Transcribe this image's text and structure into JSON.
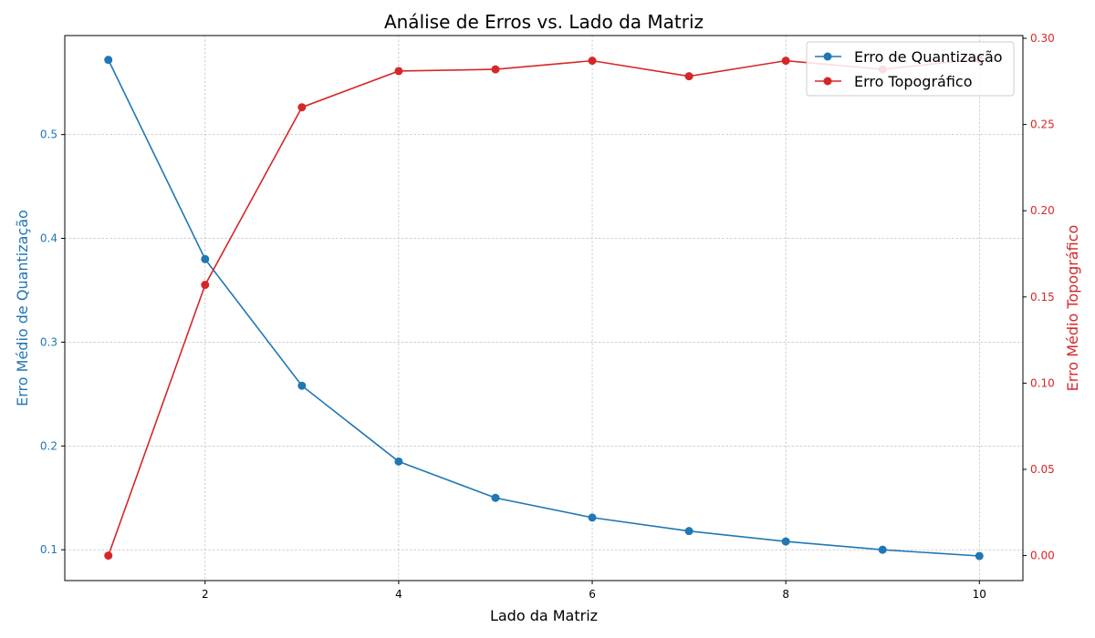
{
  "chart_data": {
    "type": "line",
    "title": "Análise de Erros vs. Lado da Matriz",
    "xlabel": "Lado da Matriz",
    "ylabel_left": "Erro Médio de Quantização",
    "ylabel_right": "Erro Médio Topográfico",
    "x": [
      1,
      2,
      3,
      4,
      5,
      6,
      7,
      8,
      9,
      10
    ],
    "xlim": [
      0.55,
      10.45
    ],
    "x_ticks": [
      2,
      4,
      6,
      8,
      10
    ],
    "ylim_left": [
      0.0703,
      0.5954
    ],
    "y_ticks_left": [
      0.1,
      0.2,
      0.3,
      0.4,
      0.5
    ],
    "ylim_right": [
      -0.0145,
      0.3016
    ],
    "y_ticks_right": [
      0.0,
      0.05,
      0.1,
      0.15,
      0.2,
      0.25,
      0.3
    ],
    "grid": true,
    "legend_position": "top-right",
    "series": [
      {
        "name": "Erro de Quantização",
        "axis": "left",
        "color": "#1f77b4",
        "values": [
          0.572,
          0.38,
          0.258,
          0.185,
          0.15,
          0.131,
          0.118,
          0.108,
          0.1,
          0.094
        ]
      },
      {
        "name": "Erro Topográfico",
        "axis": "right",
        "color": "#d62728",
        "values": [
          0.0,
          0.157,
          0.26,
          0.281,
          0.282,
          0.287,
          0.278,
          0.287,
          0.282,
          0.288
        ]
      }
    ]
  }
}
